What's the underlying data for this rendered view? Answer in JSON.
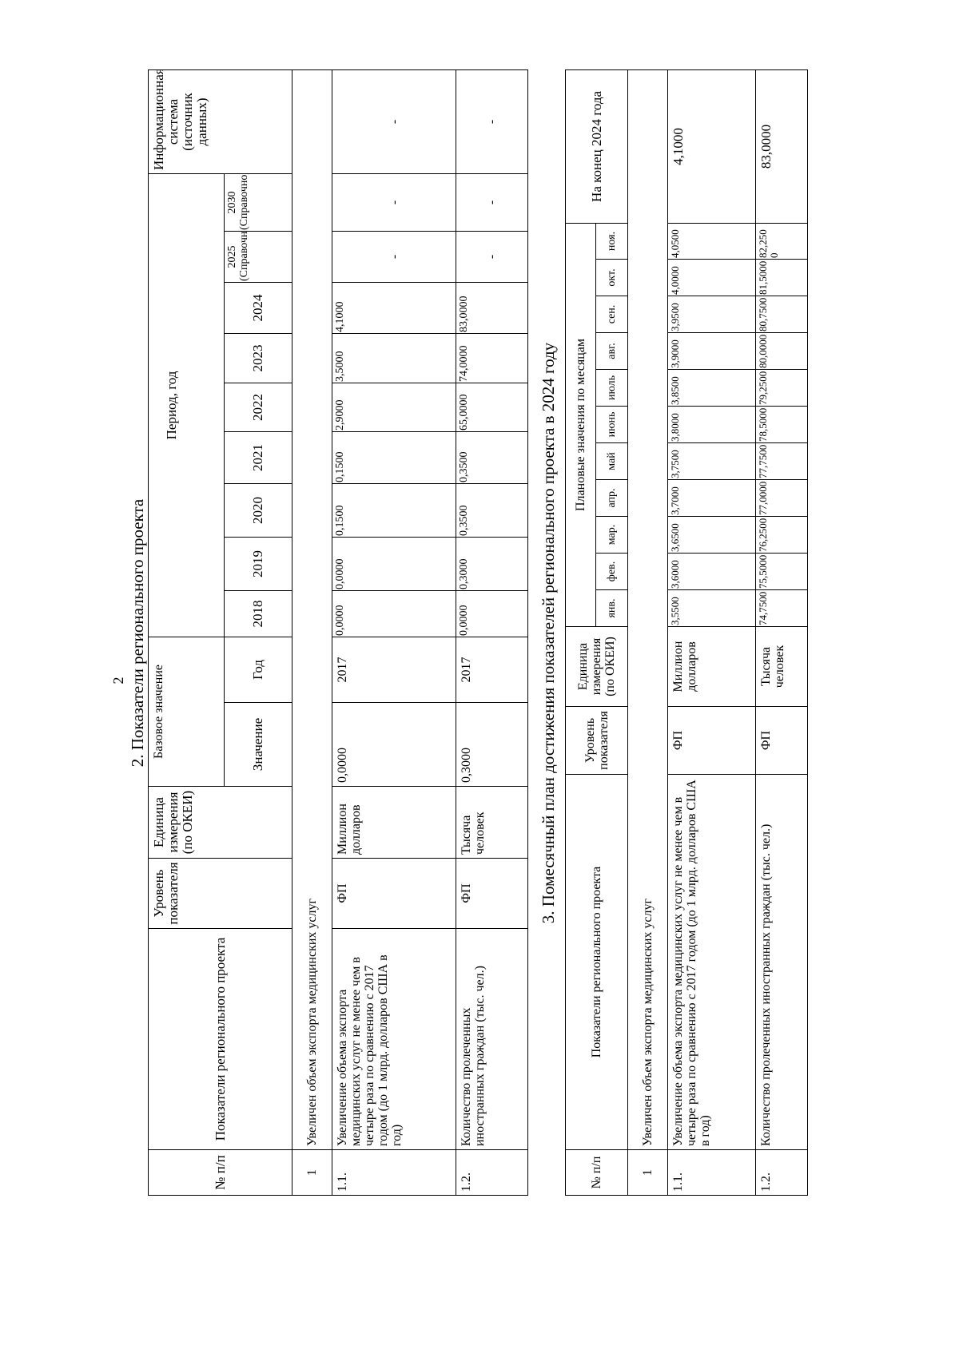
{
  "page_number": "2",
  "section2": {
    "title": "2. Показатели регионального проекта",
    "headers": {
      "num": "№ п/п",
      "indicator": "Показатели регионального проекта",
      "level": "Уровень показателя",
      "unit": "Единица измерения (по ОКЕИ)",
      "base": "Базовое значение",
      "base_value": "Значение",
      "base_year": "Год",
      "period": "Период, год",
      "years": [
        "2018",
        "2019",
        "2020",
        "2021",
        "2022",
        "2023",
        "2024",
        "2025 (Справочно)",
        "2030 (Справочно)"
      ],
      "source": "Информационная система (источник данных)"
    },
    "group": {
      "num": "1",
      "label": "Увеличен объем экспорта медицинских услуг"
    },
    "rows": [
      {
        "num": "1.1.",
        "indicator": "Увеличение объема экспорта медицинских услуг не менее чем в четыре раза по сравнению с 2017 годом (до 1 млрд. долларов США в год)",
        "level": "ФП",
        "unit": "Миллион долларов",
        "base_value": "0,0000",
        "base_year": "2017",
        "values": [
          "0,0000",
          "0,0000",
          "0,1500",
          "0,1500",
          "2,9000",
          "3,5000",
          "4,1000",
          "-",
          "-"
        ],
        "source": "-"
      },
      {
        "num": "1.2.",
        "indicator": "Количество пролеченных иностранных граждан (тыс. чел.)",
        "level": "ФП",
        "unit": "Тысяча человек",
        "base_value": "0,3000",
        "base_year": "2017",
        "values": [
          "0,0000",
          "0,3000",
          "0,3500",
          "0,3500",
          "65,0000",
          "74,0000",
          "83,0000",
          "-",
          "-"
        ],
        "source": "-"
      }
    ]
  },
  "section3": {
    "title": "3. Помесячный план достижения показателей регионального проекта в 2024 году",
    "headers": {
      "num": "№ п/п",
      "indicator": "Показатели регионального проекта",
      "level": "Уровень показателя",
      "unit": "Единица измерения (по ОКЕИ)",
      "monthly": "Плановые значения по месяцам",
      "months": [
        "янв.",
        "фев.",
        "мар.",
        "апр.",
        "май",
        "июнь",
        "июль",
        "авг.",
        "сен.",
        "окт.",
        "ноя."
      ],
      "year_end": "На конец 2024 года"
    },
    "group": {
      "num": "1",
      "label": "Увеличен объем экспорта медицинских услуг"
    },
    "rows": [
      {
        "num": "1.1.",
        "indicator": "Увеличение объема экспорта медицинских услуг не менее чем в четыре раза по сравнению с 2017 годом (до 1 млрд. долларов США в год)",
        "level": "ФП",
        "unit": "Миллион долларов",
        "months": [
          "3,5500",
          "3,6000",
          "3,6500",
          "3,7000",
          "3,7500",
          "3,8000",
          "3,8500",
          "3,9000",
          "3,9500",
          "4,0000",
          "4,0500"
        ],
        "year_end": "4,1000"
      },
      {
        "num": "1.2.",
        "indicator": "Количество пролеченных иностранных граждан (тыс. чел.)",
        "level": "ФП",
        "unit": "Тысяча человек",
        "months": [
          "74,7500",
          "75,5000",
          "76,2500",
          "77,0000",
          "77,7500",
          "78,5000",
          "79,2500",
          "80,0000",
          "80,7500",
          "81,5000",
          "82,2500"
        ],
        "year_end": "83,0000"
      }
    ]
  }
}
